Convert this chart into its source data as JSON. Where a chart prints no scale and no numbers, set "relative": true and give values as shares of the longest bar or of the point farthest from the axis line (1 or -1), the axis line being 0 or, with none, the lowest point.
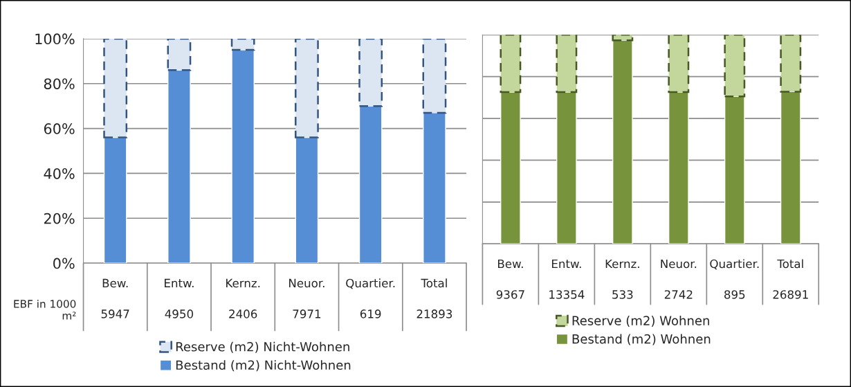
{
  "chart_data": [
    {
      "type": "bar",
      "stacked": true,
      "categories": [
        "Bew.",
        "Entw.",
        "Kernz.",
        "Neuor.",
        "Quartier.",
        "Total"
      ],
      "series": [
        {
          "name": "Bestand (m2) Nicht-Wohnen",
          "color": "#558ed5",
          "values": [
            56,
            86,
            95,
            56,
            70,
            67
          ]
        },
        {
          "name": "Reserve (m2) Nicht-Wohnen",
          "color": "#dce6f2",
          "values": [
            44,
            14,
            5,
            44,
            30,
            33
          ],
          "line_style": "dashed"
        }
      ],
      "ylim": [
        0,
        100
      ],
      "yticks": [
        {
          "value": 0,
          "label": "0%"
        },
        {
          "value": 20,
          "label": "20%"
        },
        {
          "value": 40,
          "label": "40%"
        },
        {
          "value": 60,
          "label": "60%"
        },
        {
          "value": 80,
          "label": "80%"
        },
        {
          "value": 100,
          "label": "100%"
        }
      ],
      "grid": "y",
      "legend": "bottom",
      "annotations": [
        "EBF in 1000 m²",
        "5947",
        "4950",
        "2406",
        "7971",
        "619",
        "21893"
      ]
    },
    {
      "type": "bar",
      "stacked": true,
      "relative": true,
      "categories": [
        "Bew.",
        "Entw.",
        "Kernz.",
        "Neuor.",
        "Quartier.",
        "Total"
      ],
      "series": [
        {
          "name": "Bestand (m2) Wohnen",
          "color": "#77933c",
          "values": [
            0.726,
            0.726,
            0.974,
            0.726,
            0.705,
            0.728
          ]
        },
        {
          "name": "Reserve (m2) Wohnen",
          "color": "#c3d69b",
          "values": [
            0.274,
            0.274,
            0.026,
            0.274,
            0.295,
            0.272
          ],
          "line_style": "dashed"
        }
      ],
      "grid": "y",
      "legend": "bottom",
      "annotations": [
        "9367",
        "13354",
        "533",
        "2742",
        "895",
        "26891"
      ]
    }
  ]
}
